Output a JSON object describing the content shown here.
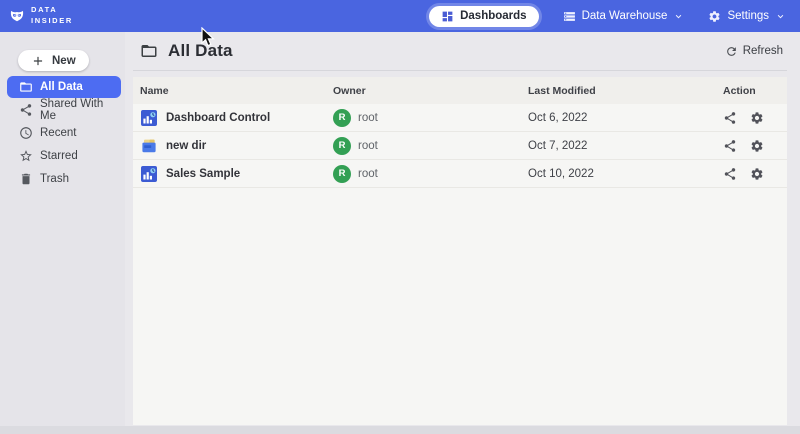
{
  "header": {
    "logo": {
      "icon": "owl-logo-icon",
      "line1": "DATA",
      "line2": "INSIDER"
    },
    "nav": [
      {
        "label": "Dashboards",
        "icon": "dashboard-icon",
        "active": true,
        "has_dropdown": false
      },
      {
        "label": "Data Warehouse",
        "icon": "database-icon",
        "active": false,
        "has_dropdown": true
      },
      {
        "label": "Settings",
        "icon": "gear-icon",
        "active": false,
        "has_dropdown": true
      }
    ]
  },
  "sidebar": {
    "new_button": {
      "label": "New",
      "icon": "plus-icon"
    },
    "items": [
      {
        "label": "All Data",
        "icon": "folder-icon",
        "selected": true
      },
      {
        "label": "Shared With Me",
        "icon": "share-people-icon",
        "selected": false
      },
      {
        "label": "Recent",
        "icon": "clock-icon",
        "selected": false
      },
      {
        "label": "Starred",
        "icon": "star-icon",
        "selected": false
      },
      {
        "label": "Trash",
        "icon": "trash-icon",
        "selected": false
      }
    ]
  },
  "main": {
    "title": "All Data",
    "title_icon": "folder-icon",
    "refresh_label": "Refresh",
    "refresh_icon": "refresh-icon",
    "table": {
      "columns": [
        "Name",
        "Owner",
        "Last Modified",
        "Action"
      ],
      "action_icons": [
        "share-icon",
        "gear-icon"
      ],
      "rows": [
        {
          "name": "Dashboard Control",
          "icon": "dashboard-file-icon",
          "owner": "root",
          "owner_initial": "R",
          "modified": "Oct 6, 2022"
        },
        {
          "name": "new dir",
          "icon": "folder-file-icon",
          "owner": "root",
          "owner_initial": "R",
          "modified": "Oct 7, 2022"
        },
        {
          "name": "Sales Sample",
          "icon": "dashboard-file-icon",
          "owner": "root",
          "owner_initial": "R",
          "modified": "Oct 10, 2022"
        }
      ]
    }
  },
  "colors": {
    "header_bg": "#4a65e0",
    "active_item_bg": "#4d6cf2",
    "sidebar_bg": "#e5e4e9",
    "main_bg": "#e9e8ec",
    "card_bg": "#f6f6f4",
    "thead_bg": "#f0efec",
    "avatar_bg": "#33a054",
    "accent_icon": "#4a5cd4"
  }
}
